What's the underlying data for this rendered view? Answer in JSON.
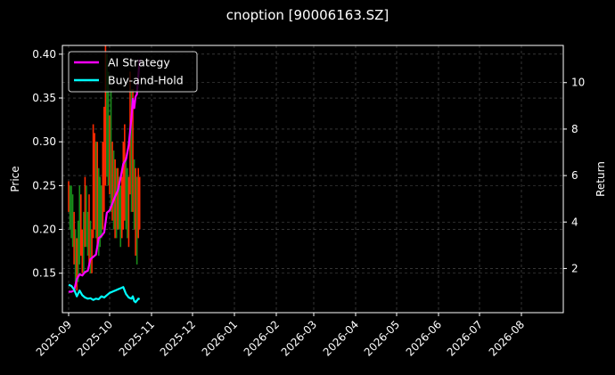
{
  "title": "cnoption [90006163.SZ]",
  "colors": {
    "background": "#000000",
    "axes": "#ffffff",
    "grid": "#555555",
    "ai_strategy": "#ff00ff",
    "buy_and_hold": "#00ffff",
    "candle_up": "#ff2a00",
    "candle_down": "#1a8a1a"
  },
  "chart_data": {
    "type": "line",
    "title": "cnoption [90006163.SZ]",
    "xlabel": "",
    "ylabel": "Price",
    "ylabel_right": "Return",
    "x_ticks": [
      "2025-09",
      "2025-10",
      "2025-11",
      "2025-12",
      "2026-01",
      "2026-02",
      "2026-03",
      "2026-04",
      "2026-05",
      "2026-06",
      "2026-07",
      "2026-08"
    ],
    "y_left_ticks": [
      "0.15",
      "0.20",
      "0.25",
      "0.30",
      "0.35",
      "0.40"
    ],
    "y_left_range": [
      0.105,
      0.41
    ],
    "y_right_ticks": [
      "2",
      "4",
      "6",
      "8",
      "10"
    ],
    "y_right_range": [
      0.1,
      11.6
    ],
    "grid": true,
    "legend_position": "upper left",
    "legend": [
      "AI Strategy",
      "Buy-and-Hold"
    ],
    "series": [
      {
        "name": "AI Strategy",
        "axis": "right",
        "x_day": [
          0,
          2,
          4,
          6,
          8,
          10,
          12,
          14,
          16,
          18,
          20,
          22,
          24,
          26,
          28,
          30,
          32,
          34,
          36,
          38,
          40,
          42,
          44,
          46,
          47,
          48,
          49,
          50,
          51,
          52
        ],
        "values": [
          1.0,
          1.0,
          1.05,
          1.55,
          1.75,
          1.7,
          1.85,
          1.9,
          2.4,
          2.5,
          2.6,
          3.3,
          3.4,
          3.55,
          4.4,
          4.5,
          4.8,
          5.1,
          5.35,
          5.9,
          6.5,
          6.7,
          7.3,
          8.5,
          9.3,
          8.9,
          9.4,
          9.5,
          10.3,
          11.0
        ]
      },
      {
        "name": "Buy-and-Hold",
        "axis": "right",
        "x_day": [
          0,
          2,
          4,
          6,
          8,
          10,
          12,
          14,
          16,
          18,
          20,
          22,
          24,
          26,
          28,
          30,
          32,
          34,
          36,
          38,
          40,
          42,
          44,
          46,
          47,
          48,
          49,
          50,
          51,
          52
        ],
        "values": [
          1.3,
          1.25,
          1.1,
          0.8,
          1.05,
          0.85,
          0.75,
          0.7,
          0.72,
          0.65,
          0.7,
          0.68,
          0.8,
          0.75,
          0.85,
          0.95,
          1.0,
          1.05,
          1.1,
          1.15,
          1.2,
          0.9,
          0.75,
          0.7,
          0.8,
          0.6,
          0.55,
          0.62,
          0.7,
          0.68
        ]
      }
    ],
    "candles": {
      "axis": "left",
      "x_day": [
        0,
        1,
        2,
        3,
        4,
        5,
        6,
        7,
        8,
        9,
        10,
        11,
        12,
        13,
        14,
        15,
        16,
        17,
        18,
        19,
        20,
        21,
        22,
        23,
        24,
        25,
        26,
        27,
        28,
        29,
        30,
        31,
        32,
        33,
        34,
        35,
        36,
        37,
        38,
        39,
        40,
        41,
        42,
        43,
        44,
        45,
        46,
        47,
        48,
        49,
        50,
        51,
        52
      ],
      "high": [
        0.255,
        0.25,
        0.25,
        0.24,
        0.22,
        0.2,
        0.19,
        0.21,
        0.25,
        0.24,
        0.2,
        0.22,
        0.26,
        0.25,
        0.22,
        0.24,
        0.21,
        0.2,
        0.32,
        0.31,
        0.3,
        0.3,
        0.27,
        0.26,
        0.25,
        0.3,
        0.34,
        0.41,
        0.4,
        0.38,
        0.33,
        0.36,
        0.3,
        0.29,
        0.28,
        0.27,
        0.27,
        0.26,
        0.25,
        0.26,
        0.3,
        0.32,
        0.28,
        0.27,
        0.26,
        0.38,
        0.36,
        0.36,
        0.28,
        0.27,
        0.26,
        0.27,
        0.26
      ],
      "low": [
        0.22,
        0.2,
        0.19,
        0.18,
        0.16,
        0.14,
        0.13,
        0.14,
        0.16,
        0.17,
        0.15,
        0.15,
        0.18,
        0.18,
        0.17,
        0.16,
        0.15,
        0.15,
        0.19,
        0.2,
        0.19,
        0.18,
        0.17,
        0.18,
        0.19,
        0.2,
        0.22,
        0.25,
        0.26,
        0.25,
        0.24,
        0.22,
        0.21,
        0.2,
        0.19,
        0.19,
        0.2,
        0.2,
        0.18,
        0.19,
        0.2,
        0.21,
        0.2,
        0.19,
        0.18,
        0.24,
        0.22,
        0.22,
        0.2,
        0.17,
        0.16,
        0.19,
        0.2
      ],
      "up": [
        true,
        false,
        false,
        false,
        true,
        false,
        true,
        false,
        false,
        true,
        true,
        false,
        true,
        false,
        false,
        true,
        false,
        true,
        true,
        true,
        false,
        true,
        false,
        false,
        false,
        true,
        true,
        true,
        false,
        false,
        true,
        false,
        true,
        false,
        true,
        false,
        true,
        false,
        false,
        true,
        true,
        true,
        false,
        false,
        true,
        true,
        false,
        true,
        false,
        true,
        false,
        true,
        true
      ]
    }
  }
}
